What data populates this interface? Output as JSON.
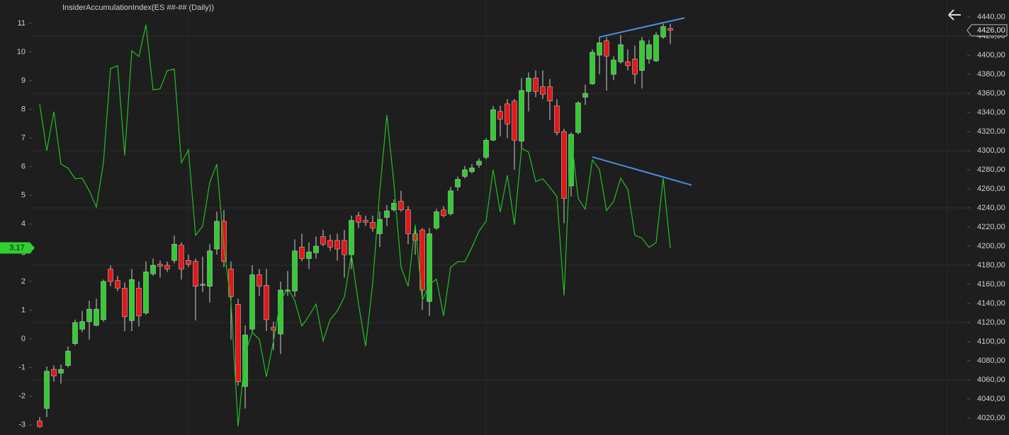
{
  "chart_data": {
    "type": "candlestick",
    "title": "InsiderAccumulationIndex(ES ##-## (Daily))",
    "xlim": [
      -1.1,
      130.9
    ],
    "ylim": [
      -3.35,
      11.81
    ],
    "yticks": [
      -3,
      -2,
      -1,
      0,
      1,
      2,
      3,
      4,
      5,
      6,
      7,
      8,
      9,
      10,
      11
    ],
    "y2lim": [
      4002.2,
      4457.8
    ],
    "y2ticks": [
      {
        "value": 4020,
        "label": "4020,00"
      },
      {
        "value": 4040,
        "label": "4040,00"
      },
      {
        "value": 4060,
        "label": "4060,00"
      },
      {
        "value": 4080,
        "label": "4080,00"
      },
      {
        "value": 4100,
        "label": "4100,00"
      },
      {
        "value": 4120,
        "label": "4120,00"
      },
      {
        "value": 4140,
        "label": "4140,00"
      },
      {
        "value": 4160,
        "label": "4160,00"
      },
      {
        "value": 4180,
        "label": "4180,00"
      },
      {
        "value": 4200,
        "label": "4200,00"
      },
      {
        "value": 4220,
        "label": "4220,00"
      },
      {
        "value": 4240,
        "label": "4240,00"
      },
      {
        "value": 4260,
        "label": "4260,00"
      },
      {
        "value": 4280,
        "label": "4280,00"
      },
      {
        "value": 4300,
        "label": "4300,00"
      },
      {
        "value": 4320,
        "label": "4320,00"
      },
      {
        "value": 4340,
        "label": "4340,00"
      },
      {
        "value": 4360,
        "label": "4360,00"
      },
      {
        "value": 4380,
        "label": "4380,00"
      },
      {
        "value": 4400,
        "label": "4400,00"
      },
      {
        "value": 4420,
        "label": "4420,00"
      },
      {
        "value": 4440,
        "label": "4440,00"
      }
    ],
    "grid": true,
    "candles": {
      "axis": "y2",
      "up_color": "#33cc33",
      "down_color": "#e51717",
      "wick_color": "#cfcfcf",
      "open": [
        4017,
        4030,
        4071,
        4067,
        4075,
        4098,
        4113,
        4121,
        4117,
        4123,
        4176,
        4164,
        4156,
        4122,
        4156,
        4130,
        4171,
        4181,
        4180,
        4185,
        4201,
        4185,
        4184,
        4159,
        4158,
        4197,
        4226,
        4176,
        4139,
        4053,
        4113,
        4170,
        4159,
        4115,
        4108,
        4153,
        4153,
        4199,
        4187,
        4193,
        4210,
        4206,
        4206,
        4206,
        4191,
        4232,
        4227,
        4225,
        4213,
        4230,
        4238,
        4247,
        4238,
        4213,
        4217,
        4142,
        4219,
        4238,
        4234,
        4262,
        4273,
        4278,
        4285,
        4293,
        4311,
        4341,
        4349,
        4352,
        4310,
        4362,
        4376,
        4367,
        4367,
        4347,
        4320,
        4263,
        4319,
        4356,
        4370,
        4400,
        4415,
        4380,
        4393,
        4393,
        4396,
        4384,
        4396,
        4394,
        4419,
        4428
      ],
      "high": [
        4021,
        4074,
        4075,
        4076,
        4095,
        4123,
        4132,
        4143,
        4145,
        4165,
        4180,
        4169,
        4162,
        4176,
        4163,
        4184,
        4187,
        4185,
        4184,
        4211,
        4204,
        4191,
        4187,
        4189,
        4202,
        4236,
        4238,
        4184,
        4145,
        4117,
        4180,
        4176,
        4176,
        4121,
        4163,
        4174,
        4207,
        4213,
        4204,
        4210,
        4217,
        4212,
        4213,
        4217,
        4232,
        4236,
        4232,
        4232,
        4236,
        4243,
        4249,
        4258,
        4242,
        4219,
        4219,
        4219,
        4239,
        4242,
        4262,
        4273,
        4284,
        4286,
        4292,
        4313,
        4347,
        4347,
        4354,
        4354,
        4376,
        4382,
        4384,
        4384,
        4375,
        4354,
        4323,
        4319,
        4352,
        4369,
        4406,
        4419,
        4419,
        4399,
        4421,
        4406,
        4410,
        4419,
        4416,
        4424,
        4433,
        4433
      ],
      "low": [
        4010,
        4021,
        4058,
        4056,
        4073,
        4096,
        4110,
        4102,
        4116,
        4121,
        4158,
        4153,
        4111,
        4111,
        4116,
        4128,
        4169,
        4167,
        4173,
        4182,
        4165,
        4178,
        4122,
        4152,
        4141,
        4191,
        4178,
        4102,
        4054,
        4030,
        4110,
        4148,
        4111,
        4091,
        4087,
        4148,
        4147,
        4184,
        4176,
        4187,
        4200,
        4195,
        4185,
        4167,
        4176,
        4219,
        4221,
        4215,
        4199,
        4221,
        4236,
        4236,
        4202,
        4191,
        4133,
        4127,
        4217,
        4230,
        4232,
        4258,
        4271,
        4276,
        4282,
        4291,
        4310,
        4315,
        4313,
        4280,
        4301,
        4341,
        4356,
        4354,
        4332,
        4316,
        4224,
        4252,
        4317,
        4348,
        4369,
        4380,
        4363,
        4374,
        4391,
        4384,
        4370,
        4365,
        4391,
        4393,
        4417,
        4412
      ],
      "close": [
        4011,
        4069,
        4064,
        4071,
        4090,
        4120,
        4121,
        4134,
        4134,
        4163,
        4163,
        4156,
        4126,
        4165,
        4127,
        4173,
        4180,
        4179,
        4176,
        4202,
        4176,
        4181,
        4158,
        4160,
        4195,
        4226,
        4184,
        4147,
        4058,
        4107,
        4170,
        4158,
        4123,
        4112,
        4154,
        4154,
        4195,
        4187,
        4194,
        4200,
        4202,
        4199,
        4197,
        4191,
        4227,
        4225,
        4225,
        4219,
        4228,
        4237,
        4245,
        4238,
        4213,
        4206,
        4154,
        4213,
        4236,
        4232,
        4258,
        4270,
        4280,
        4282,
        4289,
        4311,
        4343,
        4333,
        4328,
        4311,
        4363,
        4376,
        4362,
        4359,
        4352,
        4319,
        4250,
        4317,
        4350,
        4360,
        4403,
        4413,
        4399,
        4395,
        4411,
        4389,
        4380,
        4415,
        4411,
        4421,
        4430,
        4426
      ]
    },
    "series": [
      {
        "axis": "y",
        "color": "#22c022",
        "values": [
          8.19,
          6.56,
          7.92,
          6.09,
          5.95,
          5.58,
          5.6,
          5.16,
          4.59,
          6.14,
          9.42,
          9.52,
          6.39,
          10.04,
          9.84,
          10.95,
          8.68,
          8.71,
          9.35,
          9.4,
          6.14,
          6.59,
          3.61,
          3.93,
          5.45,
          6.09,
          3.19,
          1.29,
          -3.05,
          -0.51,
          0.23,
          -0.02,
          -1.32,
          -0.07,
          1.34,
          1.76,
          1.34,
          0.45,
          0.8,
          1.21,
          -0.07,
          0.67,
          0.97,
          1.46,
          2.94,
          1.21,
          -0.26,
          1.95,
          5.16,
          7.8,
          5.4,
          2.5,
          1.83,
          3.98,
          1.34,
          1.9,
          2.08,
          0.8,
          2.5,
          2.69,
          2.69,
          3.19,
          3.75,
          4.1,
          5.9,
          4.42,
          5.7,
          3.98,
          6.64,
          6.51,
          5.48,
          5.58,
          5.28,
          4.96,
          1.51,
          7.08,
          4.89,
          4.52,
          6.24,
          5.9,
          4.47,
          4.79,
          5.6,
          5.21,
          3.61,
          3.51,
          3.19,
          3.36,
          5.6,
          3.17
        ]
      }
    ],
    "trendlines": [
      {
        "axis": "y2",
        "color": "#4a8fe0",
        "x": [
          79,
          91
        ],
        "values": [
          4419,
          4439
        ]
      },
      {
        "axis": "y",
        "color": "#4a8fe0",
        "x": [
          78,
          92
        ],
        "values": [
          6.34,
          5.36
        ]
      }
    ],
    "markers": [
      {
        "axis": "y",
        "value": 3.17,
        "label": "3,17",
        "color": "#2fd12f"
      },
      {
        "axis": "y2",
        "value": 4426,
        "label": "4426,00",
        "color": "#1e1e1e"
      }
    ]
  }
}
